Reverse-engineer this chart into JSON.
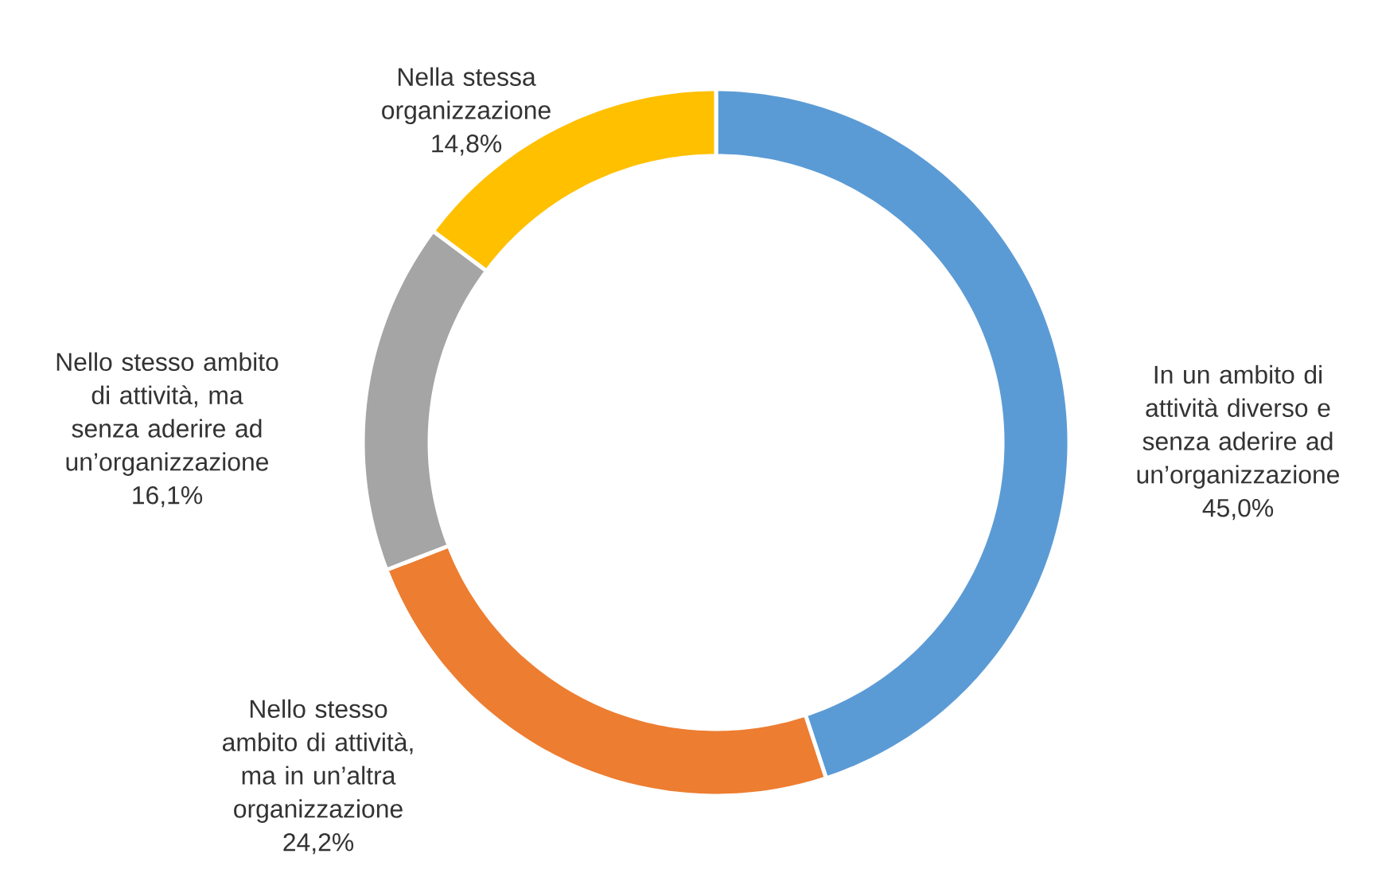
{
  "chart_data": {
    "type": "donut",
    "categories": [
      "In un ambito di attività diverso e senza aderire ad un’organizzazione",
      "Nello stesso ambito di attività, ma in un’altra organizzazione",
      "Nello stesso ambito di attività, ma senza aderire ad un’organizzazione",
      "Nella stessa organizzazione"
    ],
    "values": [
      45.0,
      24.2,
      16.1,
      14.8
    ],
    "value_labels": [
      "45,0%",
      "24,2%",
      "16,1%",
      "14,8%"
    ],
    "colors": [
      "#5b9bd5",
      "#ed7d31",
      "#a5a5a5",
      "#ffc000"
    ],
    "legend": false
  }
}
